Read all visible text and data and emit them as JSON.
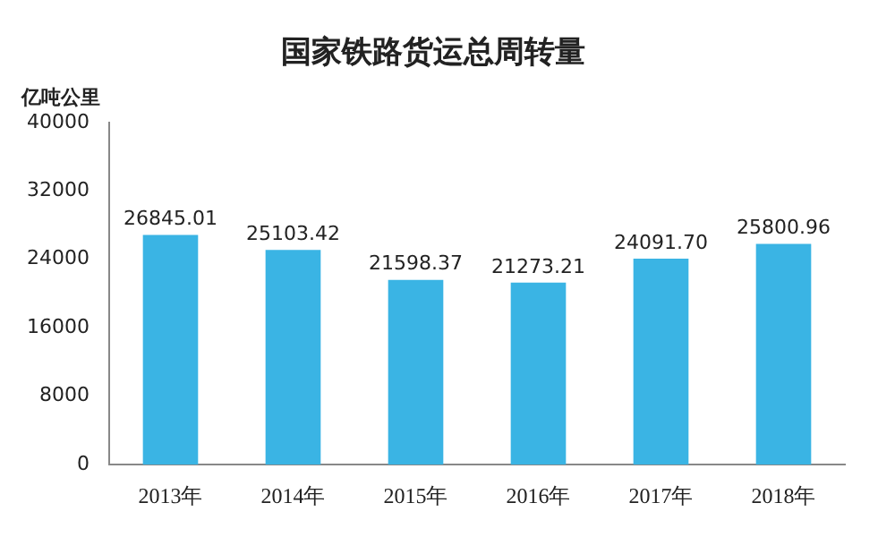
{
  "chart_data": {
    "type": "bar",
    "title": "国家铁路货运总周转量",
    "ylabel": "亿吨公里",
    "categories": [
      "2013年",
      "2014年",
      "2015年",
      "2016年",
      "2017年",
      "2018年"
    ],
    "values": [
      26845.01,
      25103.42,
      21598.37,
      21273.21,
      24091.7,
      25800.96
    ],
    "value_labels": [
      "26845.01",
      "25103.42",
      "21598.37",
      "21273.21",
      "24091.70",
      "25800.96"
    ],
    "color": "#3ab4e4",
    "ylim": [
      0,
      40000
    ],
    "yticks": [
      0,
      8000,
      16000,
      24000,
      32000,
      40000
    ],
    "grid": false,
    "legend": false
  }
}
